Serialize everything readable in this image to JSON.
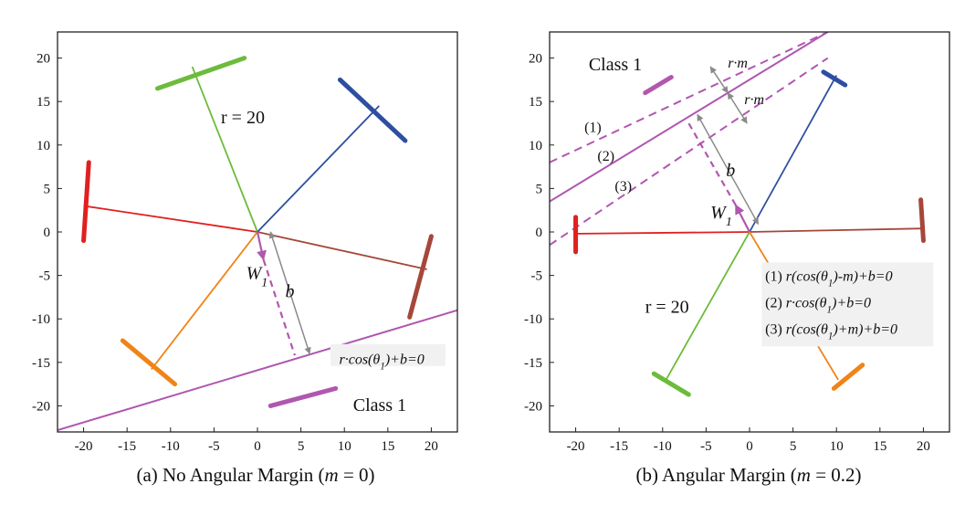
{
  "chart_data": [
    {
      "type": "scatter",
      "title": "(a) No Angular Margin (m = 0)",
      "caption": {
        "prefix": "(a) No Angular Margin (",
        "italic": "m",
        "suffix": " = 0)"
      },
      "xlim": [
        -23,
        23
      ],
      "ylim": [
        -23,
        23
      ],
      "xticks": [
        -20,
        -15,
        -10,
        -5,
        0,
        5,
        10,
        15,
        20
      ],
      "yticks": [
        -20,
        -15,
        -10,
        -5,
        0,
        5,
        10,
        15,
        20
      ],
      "grid": false,
      "radius_label": "r = 20",
      "class_label": "Class 1",
      "weight_label": "W",
      "weight_subscript": "1",
      "bias_label": "b",
      "annotations": [
        "r·cos(θ₁)+b=0"
      ],
      "equation": {
        "pre": "r·cos(θ",
        "sub": "1",
        "post": ")+b=0"
      },
      "colors": {
        "red": "#e02020",
        "green": "#6dbb3c",
        "blue": "#2e4ea0",
        "brown": "#a5473a",
        "orange": "#f08416",
        "purple": "#b057b0",
        "gray": "#8a8a8a"
      },
      "series": [
        {
          "color": "red",
          "vector": [
            -20,
            3
          ],
          "arc_from": [
            -20,
            -1
          ],
          "arc_to": [
            -19.4,
            8
          ]
        },
        {
          "color": "green",
          "vector": [
            -7.5,
            19
          ],
          "arc_from": [
            -11.5,
            16.5
          ],
          "arc_to": [
            -1.5,
            20
          ]
        },
        {
          "color": "blue",
          "vector": [
            14,
            14.5
          ],
          "arc_from": [
            9.5,
            17.5
          ],
          "arc_to": [
            17,
            10.5
          ]
        },
        {
          "color": "brown",
          "vector": [
            19.5,
            -4.3
          ],
          "arc_from": [
            20,
            -0.5
          ],
          "arc_to": [
            17.5,
            -9.8
          ]
        },
        {
          "color": "orange",
          "vector": [
            -12.2,
            -15.8
          ],
          "arc_from": [
            -15.5,
            -12.5
          ],
          "arc_to": [
            -9.5,
            -17.5
          ]
        },
        {
          "color": "purple",
          "arc_from": [
            1.5,
            -20
          ],
          "arc_to": [
            9,
            -18
          ]
        }
      ],
      "weight_vector": {
        "from": [
          0,
          0
        ],
        "to": [
          0.7,
          -3.2
        ]
      },
      "bias_segment": {
        "from": [
          0.7,
          -3.2
        ],
        "to": [
          4.3,
          -14.2
        ]
      },
      "bias_arrow": {
        "from": [
          1.5,
          0
        ],
        "to": [
          6,
          -14
        ]
      },
      "decision_line": {
        "from": [
          -23,
          -22.8
        ],
        "to": [
          23,
          -9
        ]
      }
    },
    {
      "type": "scatter",
      "title": "(b) Angular Margin (m = 0.2)",
      "caption": {
        "prefix": "(b) Angular Margin (",
        "italic": "m",
        "suffix": " = 0.2)"
      },
      "xlim": [
        -23,
        23
      ],
      "ylim": [
        -23,
        23
      ],
      "xticks": [
        -20,
        -15,
        -10,
        -5,
        0,
        5,
        10,
        15,
        20
      ],
      "yticks": [
        -20,
        -15,
        -10,
        -5,
        0,
        5,
        10,
        15,
        20
      ],
      "grid": false,
      "radius_label": "r = 20",
      "class_label": "Class 1",
      "weight_label": "W",
      "weight_subscript": "1",
      "bias_label": "b",
      "margin_labels": [
        "r·m",
        "r·m"
      ],
      "line_labels": [
        "(1)",
        "(2)",
        "(3)"
      ],
      "annotations": [
        "(1) r(cos(θ₁)-m)+b=0",
        "(2) r·cos(θ₁)+b=0",
        "(3) r(cos(θ₁)+m)+b=0"
      ],
      "equations": [
        {
          "num": "(1) ",
          "pre": "r(cos(θ",
          "sub": "1",
          "post": ")-m)+b=0"
        },
        {
          "num": "(2) ",
          "pre": "r·cos(θ",
          "sub": "1",
          "post": ")+b=0"
        },
        {
          "num": "(3) ",
          "pre": "r(cos(θ",
          "sub": "1",
          "post": ")+m)+b=0"
        }
      ],
      "colors": {
        "red": "#e02020",
        "green": "#6dbb3c",
        "blue": "#2e4ea0",
        "brown": "#a5473a",
        "orange": "#f08416",
        "purple": "#b057b0",
        "gray": "#8a8a8a"
      },
      "series": [
        {
          "color": "red",
          "vector": [
            -20,
            -0.2
          ],
          "arc_from": [
            -20,
            -2.3
          ],
          "arc_to": [
            -20,
            1.7
          ]
        },
        {
          "color": "green",
          "vector": [
            -9.6,
            -17
          ],
          "arc_from": [
            -11,
            -16.3
          ],
          "arc_to": [
            -7,
            -18.7
          ]
        },
        {
          "color": "blue",
          "vector": [
            10,
            18
          ],
          "arc_from": [
            8.5,
            18.4
          ],
          "arc_to": [
            11,
            16.9
          ]
        },
        {
          "color": "brown",
          "vector": [
            20,
            0.4
          ],
          "arc_from": [
            19.7,
            3.7
          ],
          "arc_to": [
            20,
            -1
          ]
        },
        {
          "color": "orange",
          "vector": [
            10.2,
            -17
          ],
          "arc_from": [
            9.7,
            -18
          ],
          "arc_to": [
            13,
            -15.3
          ]
        },
        {
          "color": "purple",
          "arc_from": [
            -12,
            16
          ],
          "arc_to": [
            -9,
            17.8
          ]
        }
      ],
      "weight_vector": {
        "from": [
          0,
          0
        ],
        "to": [
          -1.6,
          3.1
        ]
      },
      "bias_segment": {
        "from": [
          -1.6,
          3.1
        ],
        "to": [
          -7,
          12.5
        ]
      },
      "bias_arrow": {
        "from": [
          1,
          0.9
        ],
        "to": [
          -6,
          13.5
        ]
      },
      "decision_lines": [
        {
          "label": "(1)",
          "style": "dashed",
          "from": [
            -23,
            8
          ],
          "to": [
            9,
            23
          ]
        },
        {
          "label": "(2)",
          "style": "solid",
          "from": [
            -23,
            3.5
          ],
          "to": [
            9,
            23
          ]
        },
        {
          "label": "(3)",
          "style": "dashed",
          "from": [
            -23,
            -1.5
          ],
          "to": [
            9,
            20
          ]
        }
      ],
      "margin_arrows": [
        {
          "from": [
            -4.5,
            19
          ],
          "to": [
            -2.5,
            16
          ]
        },
        {
          "from": [
            -2.5,
            16
          ],
          "to": [
            -0.3,
            12.5
          ]
        }
      ]
    }
  ]
}
